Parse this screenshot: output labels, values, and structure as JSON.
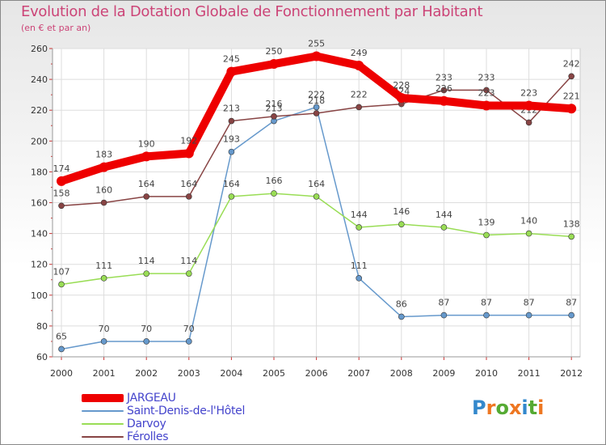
{
  "header": {
    "title": "Evolution de la Dotation Globale de Fonctionnement par Habitant",
    "subtitle": "(en € et par an)"
  },
  "logo": {
    "text": "Proxiti"
  },
  "chart_data": {
    "type": "line",
    "title": "Evolution de la Dotation Globale de Fonctionnement par Habitant",
    "subtitle": "(en € et par an)",
    "xlabel": "",
    "ylabel": "",
    "ylim": [
      60,
      260
    ],
    "yticks": [
      60,
      80,
      100,
      120,
      140,
      160,
      180,
      200,
      220,
      240,
      260
    ],
    "grid": true,
    "legend_position": "bottom-left",
    "categories": [
      "2000",
      "2001",
      "2002",
      "2003",
      "2004",
      "2005",
      "2006",
      "2007",
      "2008",
      "2009",
      "2010",
      "2011",
      "2012"
    ],
    "series": [
      {
        "name": "JARGEAU",
        "color": "#ee0000",
        "values": [
          174,
          183,
          190,
          192,
          245,
          250,
          255,
          249,
          228,
          226,
          223,
          223,
          221
        ]
      },
      {
        "name": "Saint-Denis-de-l'Hôtel",
        "color": "#6699cc",
        "values": [
          65,
          70,
          70,
          70,
          193,
          213,
          222,
          111,
          86,
          87,
          87,
          87,
          87
        ]
      },
      {
        "name": "Darvoy",
        "color": "#99dd55",
        "values": [
          107,
          111,
          114,
          114,
          164,
          166,
          164,
          144,
          146,
          144,
          139,
          140,
          138
        ]
      },
      {
        "name": "Férolles",
        "color": "#884444",
        "values": [
          158,
          160,
          164,
          164,
          213,
          216,
          218,
          222,
          224,
          233,
          233,
          212,
          242
        ]
      }
    ]
  }
}
